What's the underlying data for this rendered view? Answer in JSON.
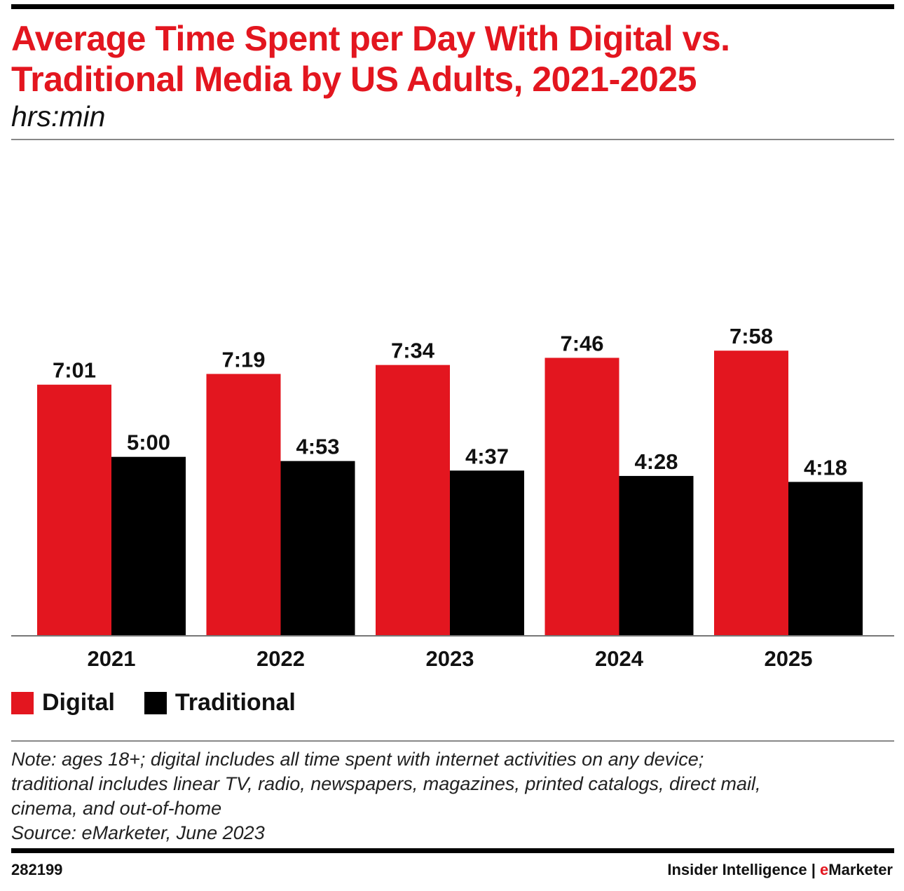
{
  "title_line1": "Average Time Spent per Day With Digital vs.",
  "title_line2": "Traditional Media by US Adults, 2021-2025",
  "subtitle": "hrs:min",
  "chart_data": {
    "type": "bar",
    "categories": [
      "2021",
      "2022",
      "2023",
      "2024",
      "2025"
    ],
    "series": [
      {
        "name": "Digital",
        "color": "#e3161f",
        "values_minutes": [
          421,
          439,
          454,
          466,
          478
        ],
        "labels": [
          "7:01",
          "7:19",
          "7:34",
          "7:46",
          "7:58"
        ]
      },
      {
        "name": "Traditional",
        "color": "#000000",
        "values_minutes": [
          300,
          293,
          277,
          268,
          258
        ],
        "labels": [
          "5:00",
          "4:53",
          "4:37",
          "4:28",
          "4:18"
        ]
      }
    ],
    "unit": "hrs:min",
    "ylim_minutes": [
      0,
      540
    ],
    "grid": false,
    "legend_position": "bottom-left"
  },
  "legend": {
    "digital": "Digital",
    "traditional": "Traditional"
  },
  "notes": [
    "Note: ages 18+; digital includes all time spent with internet activities on any device;",
    "traditional includes linear TV, radio, newspapers, magazines, printed catalogs, direct mail,",
    "cinema, and out-of-home",
    "Source: eMarketer, June 2023"
  ],
  "footer": {
    "id": "282199",
    "brand_part1": "Insider Intelligence | ",
    "brand_accent": "e",
    "brand_part2": "Marketer"
  }
}
